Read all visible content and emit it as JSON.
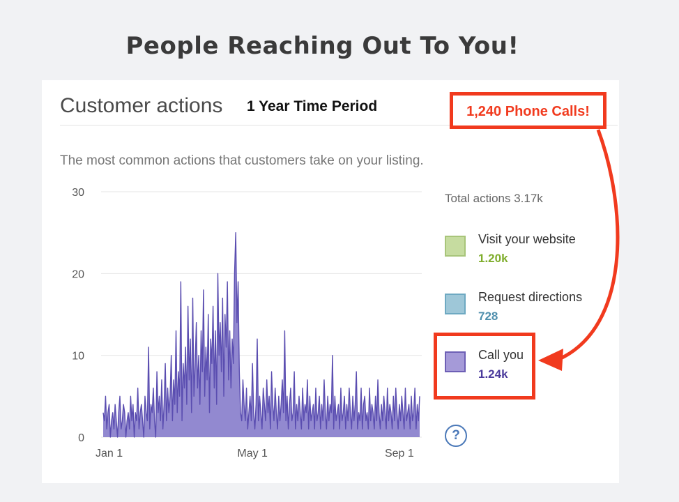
{
  "slide": {
    "title": "People Reaching Out To You!"
  },
  "card": {
    "heading": "Customer actions",
    "period": "1 Year Time Period",
    "subtitle": "The most common actions that customers take on your listing."
  },
  "legend": {
    "total": "Total actions 3.17k",
    "items": [
      {
        "label": "Visit your website",
        "value": "1.20k",
        "color": "#c6dca0",
        "border": "#a8c57a",
        "value_color": "#7fad2c"
      },
      {
        "label": "Request directions",
        "value": "728",
        "color": "#9ec7d8",
        "border": "#6ea9c2",
        "value_color": "#4f8fad"
      },
      {
        "label": "Call you",
        "value": "1.24k",
        "color": "#a59ad8",
        "border": "#6d5fb5",
        "value_color": "#4b3b9c"
      }
    ],
    "help_icon": "question-icon",
    "help_text": "?"
  },
  "callout": {
    "text": "1,240 Phone Calls!",
    "color": "#f13a1e"
  },
  "chart_data": {
    "type": "area",
    "xlabel": "",
    "ylabel": "",
    "ylim": [
      0,
      30
    ],
    "yticks": [
      0,
      10,
      20,
      30
    ],
    "x_ticks": [
      {
        "label": "Jan 1",
        "day": 5
      },
      {
        "label": "May 1",
        "day": 125
      },
      {
        "label": "Sep 1",
        "day": 248
      }
    ],
    "grid": true,
    "series": [
      {
        "name": "Call you",
        "color": "#5a4db0",
        "fill": "#7f74c8",
        "values": [
          3,
          2,
          5,
          1,
          3,
          4,
          0,
          2,
          3,
          1,
          4,
          2,
          0,
          3,
          5,
          1,
          2,
          4,
          3,
          0,
          2,
          3,
          1,
          5,
          2,
          4,
          0,
          3,
          2,
          6,
          1,
          3,
          4,
          2,
          0,
          5,
          3,
          2,
          11,
          1,
          4,
          3,
          6,
          2,
          0,
          8,
          3,
          5,
          2,
          7,
          1,
          4,
          9,
          2,
          6,
          3,
          5,
          10,
          2,
          7,
          4,
          13,
          3,
          8,
          5,
          19,
          2,
          9,
          6,
          11,
          4,
          16,
          7,
          12,
          3,
          17,
          5,
          9,
          14,
          6,
          10,
          4,
          13,
          8,
          18,
          5,
          11,
          7,
          15,
          3,
          12,
          9,
          16,
          6,
          13,
          4,
          20,
          10,
          14,
          8,
          17,
          5,
          15,
          11,
          19,
          7,
          13,
          6,
          12,
          9,
          20,
          25,
          14,
          19,
          8,
          3,
          2,
          7,
          4,
          2,
          6,
          1,
          3,
          5,
          2,
          9,
          3,
          1,
          4,
          12,
          2,
          5,
          3,
          1,
          6,
          4,
          2,
          7,
          3,
          5,
          1,
          8,
          4,
          2,
          6,
          3,
          1,
          5,
          2,
          4,
          7,
          3,
          13,
          2,
          5,
          1,
          4,
          6,
          2,
          3,
          8,
          1,
          4,
          2,
          5,
          3,
          1,
          6,
          2,
          4,
          3,
          7,
          1,
          5,
          2,
          3,
          4,
          1,
          6,
          2,
          3,
          5,
          1,
          4,
          2,
          7,
          3,
          1,
          5,
          2,
          4,
          3,
          10,
          1,
          5,
          2,
          3,
          4,
          1,
          6,
          2,
          3,
          5,
          1,
          4,
          2,
          6,
          3,
          1,
          5,
          2,
          4,
          8,
          1,
          3,
          2,
          6,
          1,
          4,
          5,
          2,
          3,
          1,
          6,
          2,
          4,
          3,
          1,
          5,
          2,
          7,
          3,
          1,
          4,
          2,
          5,
          3,
          1,
          6,
          2,
          4,
          3,
          1,
          5,
          2,
          6,
          3,
          1,
          4,
          2,
          5,
          3,
          1,
          6,
          2,
          3,
          4,
          1,
          5,
          2,
          3,
          6,
          1,
          4,
          2,
          5
        ]
      }
    ]
  }
}
